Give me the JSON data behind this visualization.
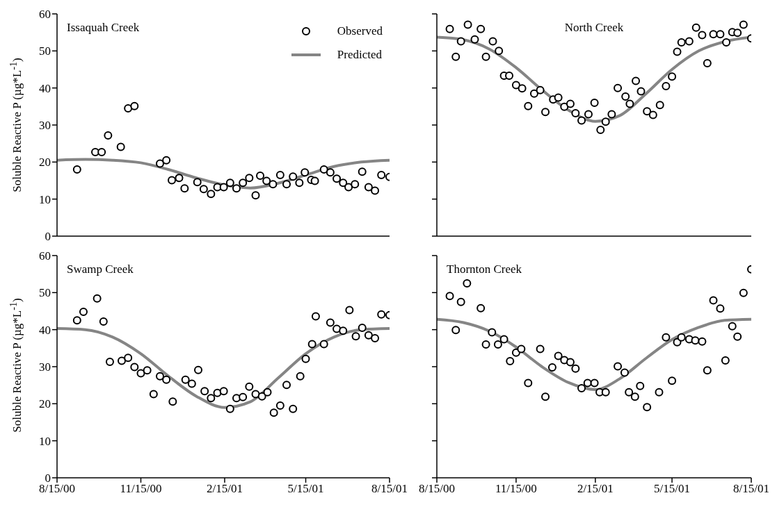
{
  "chart_data": [
    {
      "type": "scatter",
      "title": "Issaquah Creek",
      "ylabel": "Soluble Reactive P (µg*L$^{-1}$)",
      "xlim": [
        "2000-08-15",
        "2001-08-15"
      ],
      "xticks": [
        {
          "value": "2000-08-15",
          "label": null
        },
        {
          "value": "2000-11-15",
          "label": null
        },
        {
          "value": "2001-02-15",
          "label": null
        },
        {
          "value": "2001-05-15",
          "label": null
        },
        {
          "value": "2001-08-15",
          "label": null
        }
      ],
      "ylim": [
        0,
        60
      ],
      "yticks": [
        0,
        10,
        20,
        30,
        40,
        50,
        60
      ],
      "tick_labels": "y",
      "legend": "top right",
      "series": [
        {
          "name": "Observed",
          "marker": "circle",
          "color": "#000000",
          "x": [
            "2000-09-06",
            "2000-09-26",
            "2000-10-03",
            "2000-10-10",
            "2000-10-24",
            "2000-11-01",
            "2000-11-08",
            "2000-12-06",
            "2000-12-13",
            "2000-12-19",
            "2000-12-27",
            "2001-01-02",
            "2001-01-16",
            "2001-01-23",
            "2001-01-31",
            "2001-02-07",
            "2001-02-14",
            "2001-02-21",
            "2001-02-28",
            "2001-03-07",
            "2001-03-14",
            "2001-03-21",
            "2001-03-26",
            "2001-04-02",
            "2001-04-09",
            "2001-04-17",
            "2001-04-24",
            "2001-05-01",
            "2001-05-08",
            "2001-05-14",
            "2001-05-21",
            "2001-05-25",
            "2001-06-04",
            "2001-06-11",
            "2001-06-18",
            "2001-06-25",
            "2001-07-01",
            "2001-07-08",
            "2001-07-16",
            "2001-07-23",
            "2001-07-30",
            "2001-08-06",
            "2001-08-15"
          ],
          "values": [
            18.0,
            22.7,
            22.7,
            27.2,
            24.1,
            34.5,
            35.1,
            19.6,
            20.5,
            15.1,
            15.7,
            12.9,
            14.6,
            12.7,
            11.4,
            13.2,
            13.2,
            14.4,
            12.9,
            14.4,
            15.7,
            11.0,
            16.3,
            14.9,
            14.0,
            16.5,
            14.0,
            16.1,
            14.4,
            17.2,
            15.2,
            14.9,
            18.0,
            17.2,
            15.5,
            14.4,
            13.2,
            14.0,
            17.4,
            13.2,
            12.3,
            16.5,
            16.0
          ]
        },
        {
          "name": "Predicted",
          "type": "line",
          "color": "#858585",
          "x": [
            "2000-08-15",
            "2000-09-15",
            "2000-10-15",
            "2000-11-15",
            "2000-12-15",
            "2001-01-15",
            "2001-02-15",
            "2001-03-15",
            "2001-04-15",
            "2001-05-15",
            "2001-06-15",
            "2001-07-15",
            "2001-08-15"
          ],
          "values": [
            20.5,
            20.7,
            20.5,
            19.8,
            18.0,
            15.7,
            13.8,
            13.0,
            14.3,
            16.5,
            18.8,
            20.0,
            20.5
          ]
        }
      ]
    },
    {
      "type": "scatter",
      "title": "North Creek",
      "xlim": [
        "2000-08-15",
        "2001-08-15"
      ],
      "xticks": [
        {
          "value": "2000-08-15",
          "label": null
        },
        {
          "value": "2000-11-15",
          "label": null
        },
        {
          "value": "2001-02-15",
          "label": null
        },
        {
          "value": "2001-05-15",
          "label": null
        },
        {
          "value": "2001-08-15",
          "label": null
        }
      ],
      "ylim": [
        0,
        60
      ],
      "yticks": [
        {
          "value": 0,
          "label": null
        },
        {
          "value": 10,
          "label": null
        },
        {
          "value": 20,
          "label": null
        },
        {
          "value": 30,
          "label": null
        },
        {
          "value": 40,
          "label": null
        },
        {
          "value": 50,
          "label": null
        },
        {
          "value": 60,
          "label": null
        }
      ],
      "tick_labels": false,
      "series": [
        {
          "marker": "circle",
          "color": "#000000",
          "x": [
            "2000-08-30",
            "2000-09-06",
            "2000-09-12",
            "2000-09-20",
            "2000-09-28",
            "2000-10-05",
            "2000-10-11",
            "2000-10-19",
            "2000-10-26",
            "2000-11-01",
            "2000-11-07",
            "2000-11-15",
            "2000-11-22",
            "2000-11-29",
            "2000-12-06",
            "2000-12-13",
            "2000-12-19",
            "2000-12-28",
            "2001-01-03",
            "2001-01-10",
            "2001-01-17",
            "2001-01-23",
            "2001-01-30",
            "2001-02-07",
            "2001-02-14",
            "2001-02-21",
            "2001-02-27",
            "2001-03-06",
            "2001-03-13",
            "2001-03-22",
            "2001-03-27",
            "2001-04-03",
            "2001-04-09",
            "2001-04-16",
            "2001-04-23",
            "2001-05-01",
            "2001-05-08",
            "2001-05-15",
            "2001-05-21",
            "2001-05-26",
            "2001-06-04",
            "2001-06-12",
            "2001-06-19",
            "2001-06-25",
            "2001-07-02",
            "2001-07-10",
            "2001-07-17",
            "2001-07-24",
            "2001-07-30",
            "2001-08-06",
            "2001-08-15"
          ],
          "values": [
            55.9,
            48.4,
            52.6,
            57.1,
            53.1,
            55.9,
            48.4,
            52.6,
            50.0,
            43.3,
            43.3,
            40.8,
            39.9,
            35.1,
            38.5,
            39.4,
            33.5,
            36.9,
            37.4,
            34.9,
            35.7,
            33.2,
            31.2,
            32.9,
            36.0,
            28.7,
            30.9,
            32.9,
            40.0,
            37.7,
            35.7,
            41.9,
            39.1,
            33.7,
            32.7,
            35.4,
            40.5,
            43.1,
            49.8,
            52.3,
            52.6,
            56.3,
            54.3,
            46.7,
            54.5,
            54.5,
            52.3,
            55.1,
            54.9,
            57.1,
            53.4
          ]
        },
        {
          "type": "line",
          "color": "#858585",
          "x": [
            "2000-08-15",
            "2000-09-15",
            "2000-10-15",
            "2000-11-15",
            "2000-12-15",
            "2001-01-15",
            "2001-02-15",
            "2001-03-15",
            "2001-04-15",
            "2001-05-15",
            "2001-06-15",
            "2001-07-15",
            "2001-08-15"
          ],
          "values": [
            53.7,
            53.0,
            50.5,
            45.5,
            39.5,
            34.0,
            31.0,
            32.5,
            38.5,
            45.0,
            50.0,
            52.5,
            53.7
          ]
        }
      ]
    },
    {
      "type": "scatter",
      "title": "Swamp Creek",
      "ylabel": "Soluble Reactive P (µg*L$^{-1}$)",
      "xlim": [
        "2000-08-15",
        "2001-08-15"
      ],
      "xticks": [
        {
          "value": "2000-08-15",
          "label": "8/15/00"
        },
        {
          "value": "2000-11-15",
          "label": "11/15/00"
        },
        {
          "value": "2001-02-15",
          "label": "2/15/01"
        },
        {
          "value": "2001-05-15",
          "label": "5/15/01"
        },
        {
          "value": "2001-08-15",
          "label": "8/15/01"
        }
      ],
      "ylim": [
        0,
        60
      ],
      "yticks": [
        0,
        10,
        20,
        30,
        40,
        50,
        60
      ],
      "series": [
        {
          "marker": "circle",
          "color": "#000000",
          "x": [
            "2000-09-06",
            "2000-09-13",
            "2000-09-28",
            "2000-10-05",
            "2000-10-12",
            "2000-10-25",
            "2000-11-01",
            "2000-11-08",
            "2000-11-15",
            "2000-11-22",
            "2000-11-29",
            "2000-12-06",
            "2000-12-13",
            "2000-12-20",
            "2001-01-03",
            "2001-01-10",
            "2001-01-17",
            "2001-01-24",
            "2001-01-31",
            "2001-02-07",
            "2001-02-14",
            "2001-02-21",
            "2001-02-28",
            "2001-03-07",
            "2001-03-14",
            "2001-03-21",
            "2001-03-28",
            "2001-04-03",
            "2001-04-10",
            "2001-04-17",
            "2001-04-24",
            "2001-05-01",
            "2001-05-09",
            "2001-05-15",
            "2001-05-22",
            "2001-05-26",
            "2001-06-04",
            "2001-06-11",
            "2001-06-18",
            "2001-06-25",
            "2001-07-02",
            "2001-07-09",
            "2001-07-16",
            "2001-07-23",
            "2001-07-30",
            "2001-08-06",
            "2001-08-15"
          ],
          "values": [
            42.5,
            44.8,
            48.4,
            42.2,
            31.3,
            31.6,
            32.4,
            29.9,
            28.2,
            29.0,
            22.6,
            27.4,
            26.5,
            20.6,
            26.5,
            25.4,
            29.1,
            23.4,
            21.5,
            22.9,
            23.4,
            18.6,
            21.5,
            21.8,
            24.6,
            22.6,
            22.0,
            23.1,
            17.6,
            19.5,
            25.1,
            18.6,
            27.4,
            32.1,
            36.1,
            43.6,
            36.1,
            41.9,
            40.2,
            39.7,
            45.3,
            38.2,
            40.5,
            38.5,
            37.7,
            44.1,
            43.9
          ]
        },
        {
          "type": "line",
          "color": "#858585",
          "x": [
            "2000-08-15",
            "2000-09-15",
            "2000-10-15",
            "2000-11-15",
            "2000-12-15",
            "2001-01-15",
            "2001-02-15",
            "2001-03-15",
            "2001-04-15",
            "2001-05-15",
            "2001-06-15",
            "2001-07-15",
            "2001-08-15"
          ],
          "values": [
            40.3,
            40.0,
            38.0,
            33.5,
            27.5,
            22.0,
            19.0,
            20.5,
            27.0,
            33.5,
            38.0,
            40.0,
            40.3
          ]
        }
      ]
    },
    {
      "type": "scatter",
      "title": "Thornton Creek",
      "xlim": [
        "2000-08-15",
        "2001-08-15"
      ],
      "xticks": [
        {
          "value": "2000-08-15",
          "label": "8/15/00"
        },
        {
          "value": "2000-11-15",
          "label": "11/15/00"
        },
        {
          "value": "2001-02-15",
          "label": "2/15/01"
        },
        {
          "value": "2001-05-15",
          "label": "5/15/01"
        },
        {
          "value": "2001-08-15",
          "label": "8/15/01"
        }
      ],
      "ylim": [
        0,
        60
      ],
      "yticks": [
        {
          "value": 0,
          "label": null
        },
        {
          "value": 10,
          "label": null
        },
        {
          "value": 20,
          "label": null
        },
        {
          "value": 30,
          "label": null
        },
        {
          "value": 40,
          "label": null
        },
        {
          "value": 50,
          "label": null
        },
        {
          "value": 60,
          "label": null
        }
      ],
      "tick_labels": "x",
      "series": [
        {
          "marker": "circle",
          "color": "#000000",
          "x": [
            "2000-08-30",
            "2000-09-06",
            "2000-09-12",
            "2000-09-19",
            "2000-10-05",
            "2000-10-11",
            "2000-10-18",
            "2000-10-25",
            "2000-11-01",
            "2000-11-08",
            "2000-11-15",
            "2000-11-21",
            "2000-11-29",
            "2000-12-13",
            "2000-12-19",
            "2000-12-27",
            "2001-01-03",
            "2001-01-10",
            "2001-01-17",
            "2001-01-23",
            "2001-01-30",
            "2001-02-06",
            "2001-02-14",
            "2001-02-20",
            "2001-02-27",
            "2001-03-13",
            "2001-03-21",
            "2001-03-26",
            "2001-04-02",
            "2001-04-08",
            "2001-04-16",
            "2001-04-30",
            "2001-05-08",
            "2001-05-15",
            "2001-05-21",
            "2001-05-26",
            "2001-06-04",
            "2001-06-11",
            "2001-06-19",
            "2001-06-25",
            "2001-07-02",
            "2001-07-10",
            "2001-07-16",
            "2001-07-24",
            "2001-07-30",
            "2001-08-06",
            "2001-08-15"
          ],
          "values": [
            49.1,
            39.9,
            47.5,
            52.5,
            45.8,
            36.0,
            39.3,
            36.0,
            37.4,
            31.5,
            33.8,
            34.8,
            25.6,
            34.8,
            21.9,
            29.8,
            32.9,
            31.8,
            31.2,
            29.5,
            24.2,
            25.6,
            25.6,
            23.1,
            23.1,
            30.1,
            28.4,
            23.1,
            21.9,
            24.8,
            19.1,
            23.1,
            37.9,
            26.2,
            36.6,
            37.9,
            37.4,
            37.1,
            36.8,
            29.0,
            47.9,
            45.7,
            31.7,
            40.9,
            38.1,
            49.9,
            56.3
          ]
        },
        {
          "type": "line",
          "color": "#858585",
          "x": [
            "2000-08-15",
            "2000-09-15",
            "2000-10-15",
            "2000-11-15",
            "2000-12-15",
            "2001-01-15",
            "2001-02-15",
            "2001-03-15",
            "2001-04-15",
            "2001-05-15",
            "2001-06-15",
            "2001-07-15",
            "2001-08-15"
          ],
          "values": [
            42.8,
            41.9,
            39.6,
            35.3,
            30.0,
            25.7,
            23.8,
            26.7,
            32.3,
            37.3,
            40.6,
            42.5,
            42.8
          ]
        }
      ]
    }
  ]
}
